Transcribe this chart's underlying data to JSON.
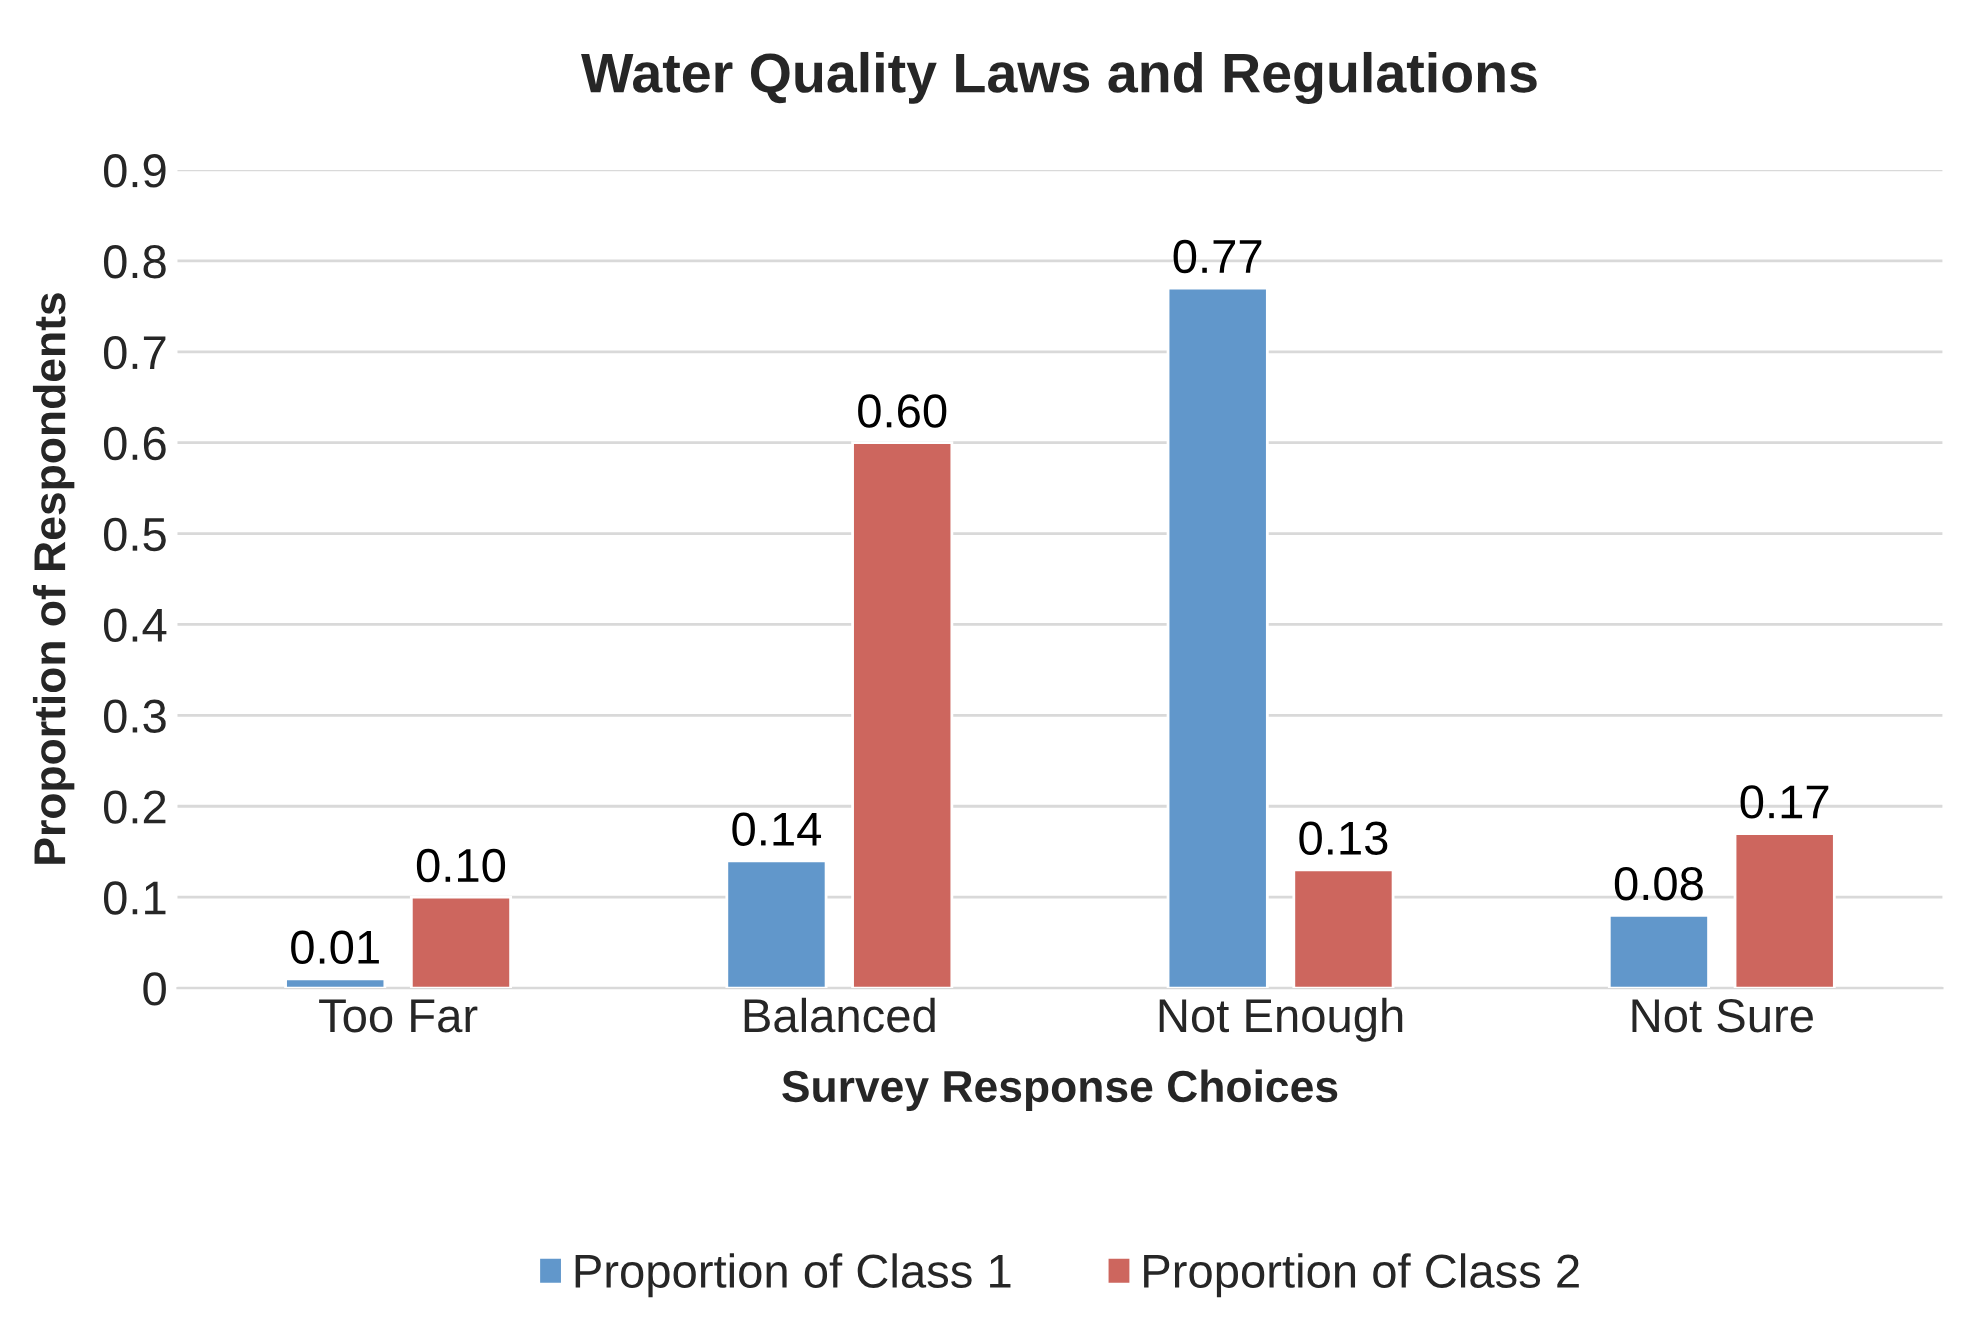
{
  "chart_data": {
    "type": "bar",
    "title": "Water Quality Laws and Regulations",
    "xlabel": "Survey Response Choices",
    "ylabel": "Proportion of Respondents",
    "categories": [
      "Too Far",
      "Balanced",
      "Not Enough",
      "Not Sure"
    ],
    "series": [
      {
        "name": "Proportion of Class 1",
        "color": "#6197cb",
        "values": [
          0.01,
          0.14,
          0.77,
          0.08
        ],
        "value_labels": [
          "0.01",
          "0.14",
          "0.77",
          "0.08"
        ]
      },
      {
        "name": "Proportion of Class 2",
        "color": "#cd665e",
        "values": [
          0.1,
          0.6,
          0.13,
          0.17
        ],
        "value_labels": [
          "0.10",
          "0.60",
          "0.13",
          "0.17"
        ]
      }
    ],
    "ylim": [
      0,
      0.9
    ],
    "yticks": [
      0,
      0.1,
      0.2,
      0.3,
      0.4,
      0.5,
      0.6,
      0.7,
      0.8,
      0.9
    ],
    "grid": "y",
    "legend": "bottom"
  }
}
